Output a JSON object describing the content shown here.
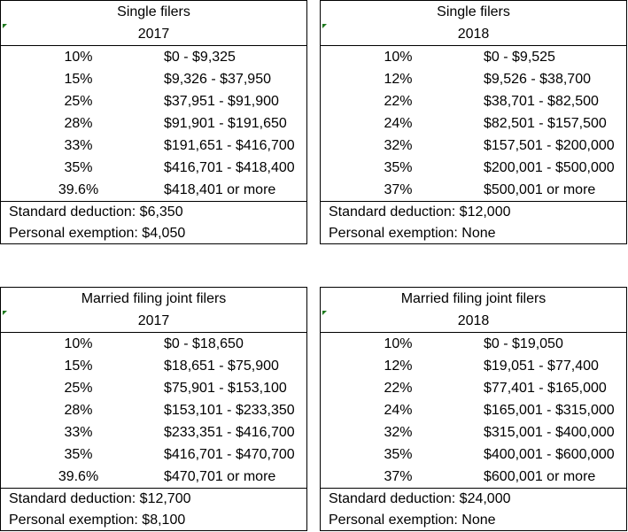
{
  "tables": [
    {
      "title": "Single filers",
      "year": "2017",
      "brackets": [
        {
          "rate": "10%",
          "range": "$0 - $9,325"
        },
        {
          "rate": "15%",
          "range": "$9,326 - $37,950"
        },
        {
          "rate": "25%",
          "range": "$37,951 - $91,900"
        },
        {
          "rate": "28%",
          "range": "$91,901 - $191,650"
        },
        {
          "rate": "33%",
          "range": "$191,651 - $416,700"
        },
        {
          "rate": "35%",
          "range": "$416,701 - $418,400"
        },
        {
          "rate": "39.6%",
          "range": "$418,401 or more"
        }
      ],
      "standard_deduction": "Standard deduction:  $6,350",
      "personal_exemption": "Personal exemption: $4,050"
    },
    {
      "title": "Single filers",
      "year": "2018",
      "brackets": [
        {
          "rate": "10%",
          "range": "$0 - $9,525"
        },
        {
          "rate": "12%",
          "range": "$9,526 - $38,700"
        },
        {
          "rate": "22%",
          "range": "$38,701 - $82,500"
        },
        {
          "rate": "24%",
          "range": "$82,501 - $157,500"
        },
        {
          "rate": "32%",
          "range": "$157,501 - $200,000"
        },
        {
          "rate": "35%",
          "range": "$200,001 - $500,000"
        },
        {
          "rate": "37%",
          "range": "$500,001 or more"
        }
      ],
      "standard_deduction": "Standard deduction:  $12,000",
      "personal_exemption": "Personal exemption: None"
    },
    {
      "title": "Married filing joint filers",
      "year": "2017",
      "brackets": [
        {
          "rate": "10%",
          "range": "$0 - $18,650"
        },
        {
          "rate": "15%",
          "range": "$18,651 - $75,900"
        },
        {
          "rate": "25%",
          "range": "$75,901 - $153,100"
        },
        {
          "rate": "28%",
          "range": "$153,101 - $233,350"
        },
        {
          "rate": "33%",
          "range": "$233,351 - $416,700"
        },
        {
          "rate": "35%",
          "range": "$416,701 - $470,700"
        },
        {
          "rate": "39.6%",
          "range": "$470,701 or more"
        }
      ],
      "standard_deduction": "Standard deduction:  $12,700",
      "personal_exemption": "Personal exemption: $8,100"
    },
    {
      "title": "Married filing joint filers",
      "year": "2018",
      "brackets": [
        {
          "rate": "10%",
          "range": "$0 - $19,050"
        },
        {
          "rate": "12%",
          "range": "$19,051 - $77,400"
        },
        {
          "rate": "22%",
          "range": "$77,401 - $165,000"
        },
        {
          "rate": "24%",
          "range": "$165,001 - $315,000"
        },
        {
          "rate": "32%",
          "range": "$315,001 - $400,000"
        },
        {
          "rate": "35%",
          "range": "$400,001 - $600,000"
        },
        {
          "rate": "37%",
          "range": "$600,001 or more"
        }
      ],
      "standard_deduction": "Standard deduction:  $24,000",
      "personal_exemption": "Personal exemption: None"
    }
  ],
  "colors": {
    "border": "#000000",
    "cell_marker": "#1e7a1e",
    "background": "#ffffff"
  }
}
